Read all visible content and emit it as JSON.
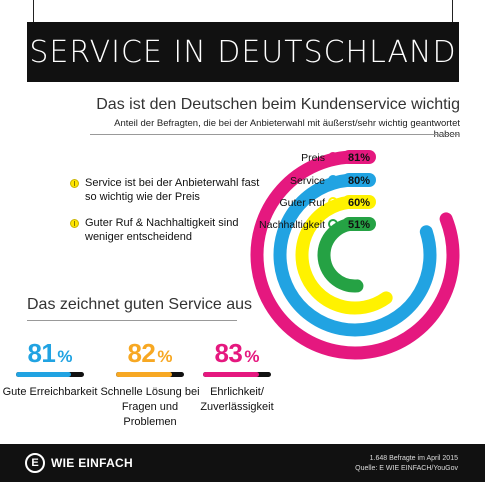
{
  "header": {
    "title": "SERVICE IN DEUTSCHLAND"
  },
  "subheader": {
    "title": "Das ist den Deutschen beim Kundenservice wichtig",
    "note": "Anteil der Befragten, die bei der Anbieterwahl mit äußerst/sehr wichtig geantwortet haben"
  },
  "bullets": [
    "Service ist bei der Anbieterwahl fast so wichtig wie der Preis",
    "Guter Ruf & Nachhaltigkeit sind  weniger entscheidend"
  ],
  "colors": {
    "magenta": "#e5187f",
    "blue": "#21a3e2",
    "yellow": "#fff200",
    "green": "#25a244",
    "black": "#111111"
  },
  "chart_data": {
    "type": "radial-bar",
    "unit": "%",
    "max": 100,
    "series": [
      {
        "name": "Preis",
        "value": 81,
        "label": "81%",
        "color": "#e5187f",
        "icon": "price-tag-icon"
      },
      {
        "name": "Service",
        "value": 80,
        "label": "80%",
        "color": "#21a3e2",
        "icon": "tools-icon"
      },
      {
        "name": "Guter Ruf",
        "value": 60,
        "label": "60%",
        "color": "#fff200",
        "icon": "laurel-icon"
      },
      {
        "name": "Nachhaltigkeit",
        "value": 51,
        "label": "51%",
        "color": "#25a244",
        "icon": "sprout-icon"
      }
    ]
  },
  "section2": {
    "title": "Das zeichnet guten Service aus"
  },
  "stats": [
    {
      "number": "81",
      "pct": "%",
      "value": 81,
      "label": "Gute Erreichbarkeit",
      "color": "#21a3e2"
    },
    {
      "number": "82",
      "pct": "%",
      "value": 82,
      "label": "Schnelle Lösung bei Fragen und Problemen",
      "color": "#f7a823"
    },
    {
      "number": "83",
      "pct": "%",
      "value": 83,
      "label": "Ehrlichkeit/ Zuverlässigkeit",
      "color": "#e5187f"
    }
  ],
  "footer": {
    "logo_letter": "E",
    "brand": "WIE EINFACH",
    "source_line1": "1.648 Befragte im April 2015",
    "source_line2": "Quelle: E WIE EINFACH/YouGov"
  }
}
